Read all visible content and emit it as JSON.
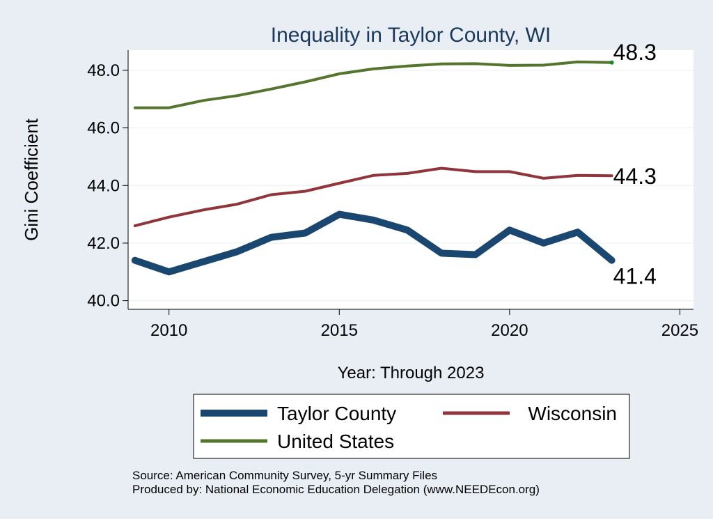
{
  "chart_data": {
    "type": "line",
    "title": "Inequality in Taylor County, WI",
    "xlabel": "Year: Through 2023",
    "ylabel": "Gini Coefficient",
    "xlim": [
      2008.8,
      2025.4
    ],
    "ylim": [
      39.7,
      48.7
    ],
    "x_ticks": [
      2010,
      2015,
      2020,
      2025
    ],
    "y_ticks": [
      40,
      42,
      44,
      46,
      48
    ],
    "y_tick_labels": [
      "40.0",
      "42.0",
      "44.0",
      "46.0",
      "48.0"
    ],
    "grid": true,
    "legend_position": "bottom",
    "x": [
      2009,
      2010,
      2011,
      2012,
      2013,
      2014,
      2015,
      2016,
      2017,
      2018,
      2019,
      2020,
      2021,
      2022,
      2023
    ],
    "series": [
      {
        "name": "Taylor County",
        "color": "#1a476f",
        "values": [
          41.4,
          41.0,
          41.35,
          41.7,
          42.2,
          42.35,
          43.0,
          42.8,
          42.45,
          41.65,
          41.6,
          42.45,
          42.0,
          42.38,
          41.4
        ],
        "end_label": "41.4"
      },
      {
        "name": "Wisconsin",
        "color": "#90353b",
        "values": [
          42.6,
          42.9,
          43.15,
          43.35,
          43.68,
          43.8,
          44.08,
          44.35,
          44.42,
          44.6,
          44.48,
          44.48,
          44.25,
          44.35,
          44.34
        ],
        "end_label": "44.3"
      },
      {
        "name": "United States",
        "color": "#55752f",
        "values": [
          46.7,
          46.7,
          46.95,
          47.12,
          47.35,
          47.6,
          47.88,
          48.05,
          48.15,
          48.22,
          48.23,
          48.17,
          48.18,
          48.29,
          48.27
        ],
        "end_label": "48.3"
      }
    ]
  },
  "source_lines": [
    "Source: American Community Survey, 5-yr Summary Files",
    "Produced by: National Economic Education Delegation (www.NEEDEcon.org)"
  ]
}
